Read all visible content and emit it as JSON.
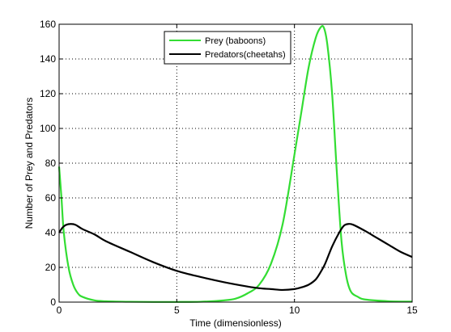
{
  "chart_data": {
    "type": "line",
    "title": "",
    "xlabel": "Time (dimensionless)",
    "ylabel": "Number of Prey and Predators",
    "xlim": [
      0,
      15
    ],
    "ylim": [
      0,
      160
    ],
    "xticks": [
      0,
      5,
      10,
      15
    ],
    "yticks": [
      0,
      20,
      40,
      60,
      80,
      100,
      120,
      140,
      160
    ],
    "grid": true,
    "grid_style": "dotted",
    "legend_position": "top-center",
    "series": [
      {
        "name": "Prey (baboons)",
        "color": "#33dd33",
        "x": [
          0,
          0.1,
          0.2,
          0.4,
          0.6,
          0.8,
          1.0,
          1.5,
          2.0,
          3.0,
          4.0,
          5.0,
          6.0,
          7.0,
          7.5,
          8.0,
          8.5,
          9.0,
          9.5,
          10.0,
          10.3,
          10.6,
          10.9,
          11.1,
          11.25,
          11.4,
          11.6,
          11.8,
          12.0,
          12.2,
          12.4,
          12.7,
          13.0,
          14.0,
          15.0
        ],
        "y": [
          78,
          60,
          40,
          20,
          10,
          5,
          3,
          1,
          0.5,
          0.2,
          0.1,
          0.1,
          0.2,
          1,
          2,
          5,
          10,
          22,
          45,
          85,
          110,
          135,
          152,
          158,
          158,
          148,
          120,
          75,
          35,
          15,
          6,
          3,
          1.5,
          0.5,
          0.3
        ]
      },
      {
        "name": "Predators(cheetahs)",
        "color": "#000000",
        "x": [
          0,
          0.15,
          0.3,
          0.5,
          0.7,
          1.0,
          1.5,
          2.0,
          3.0,
          4.0,
          5.0,
          6.0,
          7.0,
          8.0,
          8.5,
          9.0,
          9.5,
          10.0,
          10.3,
          10.6,
          10.9,
          11.1,
          11.3,
          11.6,
          11.9,
          12.1,
          12.3,
          12.5,
          13.0,
          13.5,
          14.0,
          14.5,
          15.0
        ],
        "y": [
          40,
          43,
          44.5,
          45,
          44.5,
          42,
          39,
          35,
          29,
          23,
          18,
          14.5,
          11.5,
          9,
          8,
          7.5,
          7,
          7.5,
          8.5,
          10,
          13,
          17,
          22,
          32,
          40,
          44,
          45,
          44.5,
          41,
          37,
          33,
          29,
          26
        ]
      }
    ]
  }
}
